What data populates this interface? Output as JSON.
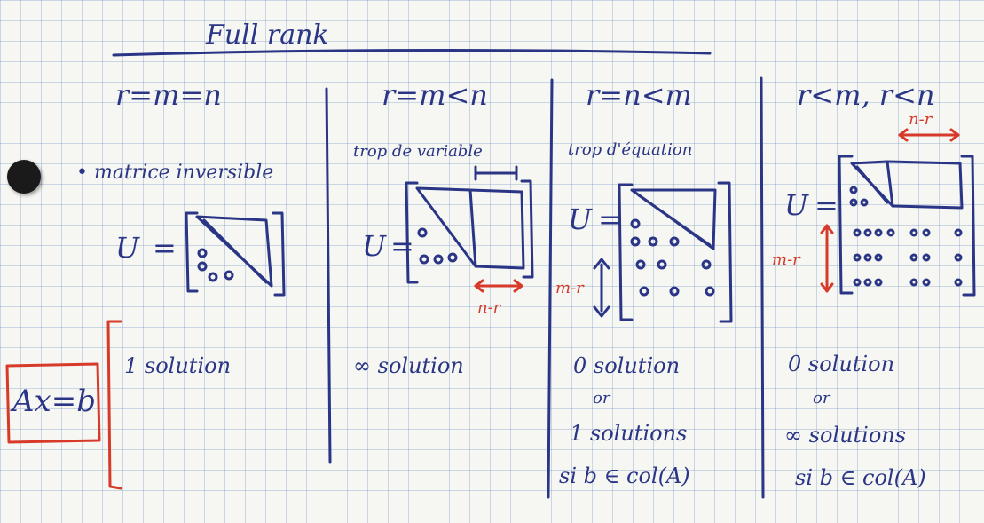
{
  "title": "Full rank",
  "equation": "Ax=b",
  "matrix_symbol": "U",
  "matrix_equals": "=",
  "columns": [
    {
      "header": "r=m=n",
      "note": "• matrice inversible",
      "solutions": [
        "1 solution"
      ]
    },
    {
      "header": "r=m<n",
      "note": "trop de variable",
      "dim_label": "n-r",
      "solutions": [
        "∞ solution"
      ]
    },
    {
      "header": "r=n<m",
      "note": "trop d'équation",
      "dim_label": "m-r",
      "solutions": [
        "0 solution",
        "or",
        "1 solutions",
        "si b ∈ col(A)"
      ]
    },
    {
      "header": "r<m, r<n",
      "dim_label_top": "n-r",
      "dim_label_side": "m-r",
      "solutions": [
        "0 solution",
        "or",
        "∞ solutions",
        "si b ∈ col(A)"
      ]
    }
  ],
  "colors": {
    "ink": "#2a3585",
    "red": "#d83a2a",
    "grid": "#7896c8"
  }
}
